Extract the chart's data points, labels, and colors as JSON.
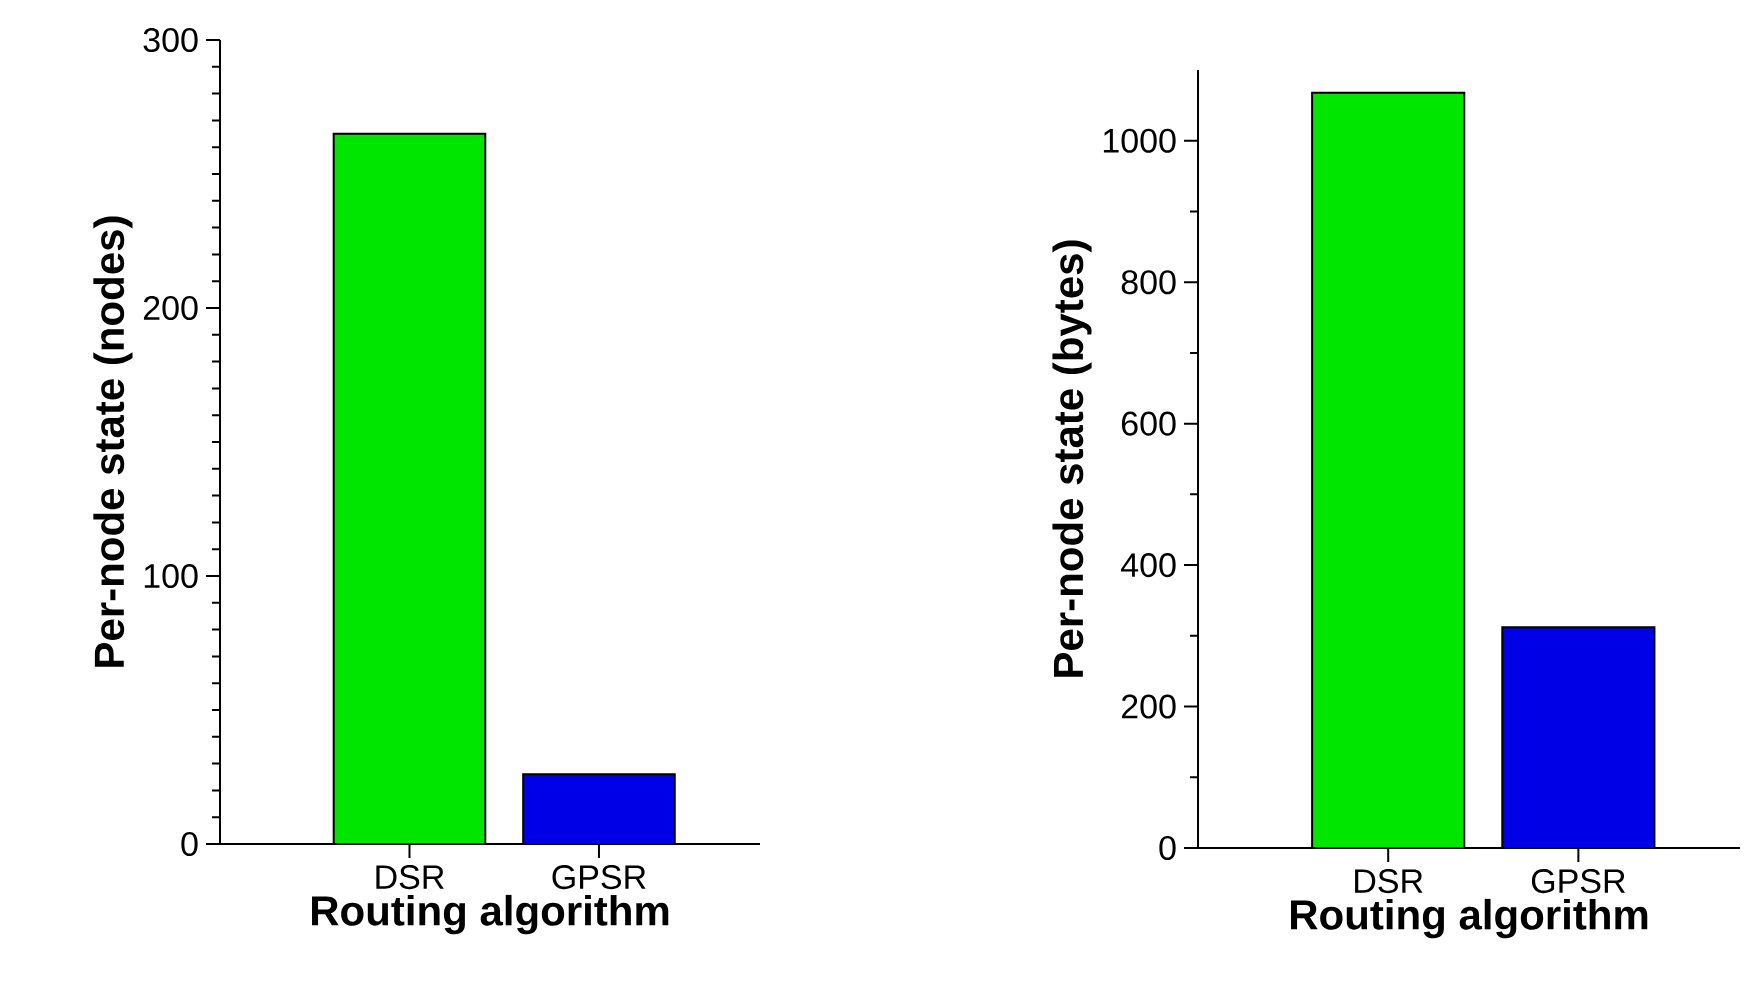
{
  "chart_data": [
    {
      "type": "bar",
      "xlabel": "Routing algorithm",
      "ylabel": "Per-node state (nodes)",
      "categories": [
        "DSR",
        "GPSR"
      ],
      "values": [
        265,
        26
      ],
      "colors": [
        "#00e600",
        "#0000e6"
      ],
      "ylim": [
        0,
        300
      ],
      "yticks": [
        0,
        100,
        200,
        300
      ]
    },
    {
      "type": "bar",
      "xlabel": "Routing algorithm",
      "ylabel": "Per-node state (bytes)",
      "categories": [
        "DSR",
        "GPSR"
      ],
      "values": [
        1068,
        312
      ],
      "colors": [
        "#00e600",
        "#0000e6"
      ],
      "ylim": [
        0,
        1100
      ],
      "yticks": [
        0,
        200,
        400,
        600,
        800,
        1000
      ]
    }
  ]
}
